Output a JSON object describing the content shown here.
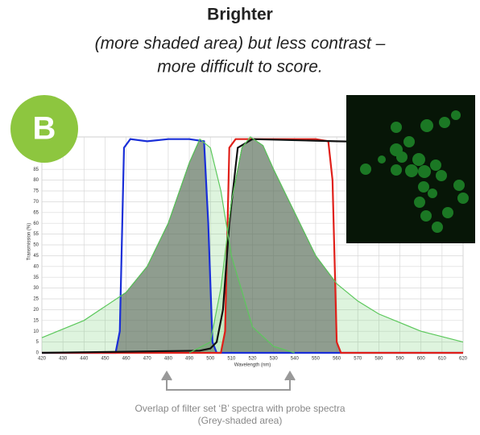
{
  "header": {
    "title": "Brighter",
    "subtitle_lines": [
      "(more shaded area) but less contrast –",
      "more difficult to score."
    ]
  },
  "badge": "B",
  "caption_lines": [
    "Overlap of filter set ‘B’ spectra with probe spectra",
    "(Grey-shaded area)"
  ],
  "chart_data": {
    "type": "line",
    "x_label": "Wavelength (nm)",
    "y_label": "Transmission (%)",
    "xlim": [
      420,
      620
    ],
    "ylim": [
      0,
      100
    ],
    "xticks": [
      420,
      430,
      440,
      450,
      460,
      470,
      480,
      490,
      500,
      510,
      520,
      530,
      540,
      550,
      560,
      570,
      580,
      590,
      600,
      610,
      620
    ],
    "yticks": [
      0,
      5,
      10,
      15,
      20,
      25,
      30,
      35,
      40,
      45,
      50,
      55,
      60,
      65,
      70,
      75,
      80,
      85
    ],
    "grid": true,
    "series": [
      {
        "color": "#1a2fd8",
        "x": [
          420,
          455,
          457,
          459,
          462,
          470,
          480,
          490,
          497,
          499,
          501,
          503,
          620
        ],
        "values": [
          0,
          0,
          10,
          95,
          99,
          98,
          99,
          99,
          98,
          60,
          5,
          0,
          0
        ]
      },
      {
        "color": "#e0201a",
        "x": [
          420,
          505,
          507,
          509,
          512,
          530,
          550,
          556,
          558,
          560,
          562,
          620
        ],
        "values": [
          0,
          0,
          10,
          95,
          99,
          99,
          99,
          98,
          80,
          5,
          0,
          0
        ]
      },
      {
        "color": "#111111",
        "x": [
          420,
          495,
          500,
          503,
          506,
          509,
          513,
          520,
          560,
          620
        ],
        "values": [
          0,
          1,
          2,
          5,
          20,
          60,
          95,
          99,
          98,
          97
        ]
      },
      {
        "color": "#5cc85c",
        "x": [
          420,
          440,
          460,
          470,
          480,
          490,
          495,
          500,
          505,
          510,
          520,
          530,
          540
        ],
        "values": [
          7,
          15,
          28,
          40,
          60,
          88,
          99,
          95,
          75,
          45,
          12,
          3,
          0
        ]
      },
      {
        "color": "#5cc85c",
        "x": [
          490,
          500,
          505,
          510,
          515,
          519,
          525,
          530,
          540,
          550,
          560,
          570,
          580,
          600,
          620
        ],
        "values": [
          0,
          5,
          30,
          70,
          95,
          100,
          96,
          85,
          65,
          45,
          32,
          24,
          18,
          10,
          5
        ]
      }
    ]
  }
}
